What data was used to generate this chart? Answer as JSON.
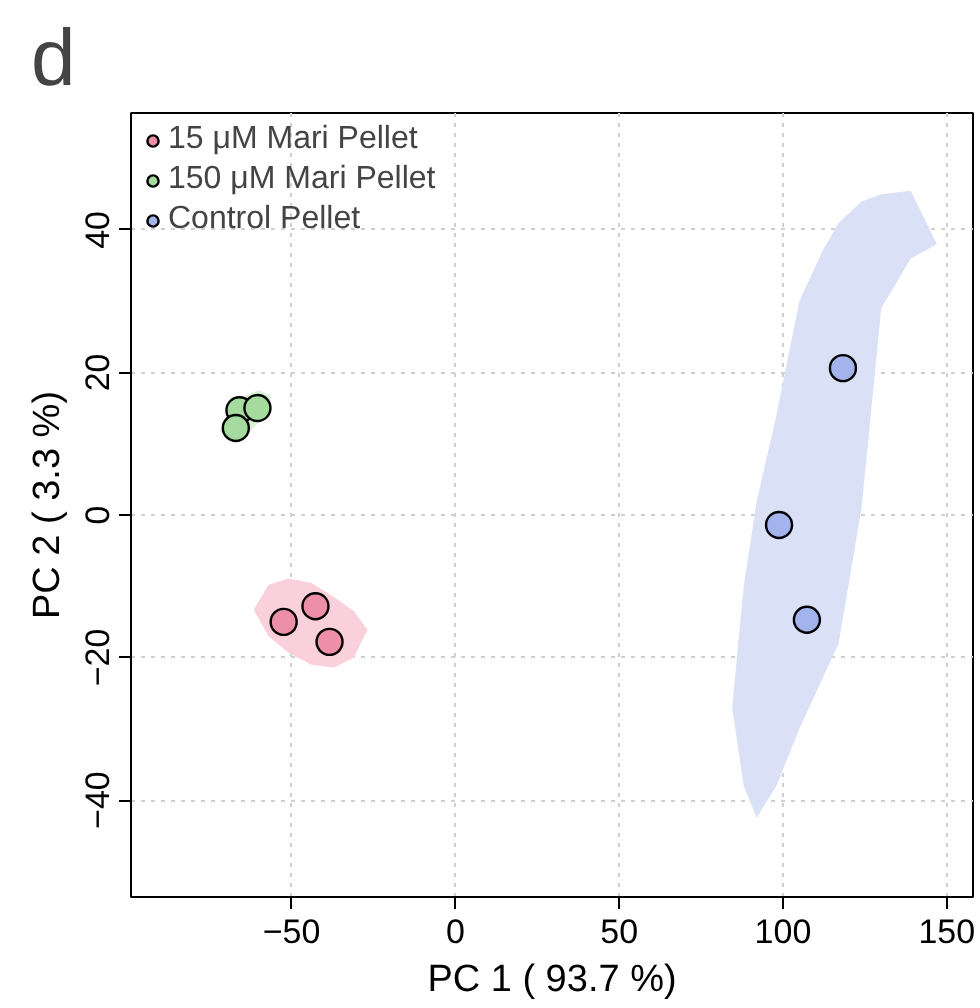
{
  "chart_data": {
    "type": "scatter",
    "xlabel": "PC 1 ( 93.7 %)",
    "ylabel": "PC 2 ( 3.3 %)",
    "annotations": [
      "d"
    ],
    "series": [
      {
        "type": "area",
        "marker": "none",
        "color": "#f9d0dc",
        "x": [
          -61.6,
          -57,
          -51,
          -44,
          -37,
          -31,
          -26.8,
          -31,
          -37,
          -44,
          -51,
          -57
        ],
        "values": [
          -13.3,
          -9.8,
          -8.9,
          -9.5,
          -11.5,
          -13.5,
          -16.1,
          -20.0,
          -21.4,
          -21.0,
          -19.3,
          -17.0
        ]
      },
      {
        "type": "area",
        "marker": "none",
        "color": "#dcf0d8",
        "x": [
          -72,
          -68,
          -64,
          -60,
          -56,
          -60,
          -64,
          -68
        ],
        "values": [
          11.7,
          14.5,
          16.8,
          17.5,
          16.7,
          13.0,
          11.0,
          10.3
        ]
      },
      {
        "type": "area",
        "marker": "none",
        "color": "#dae0f6",
        "x": [
          84.5,
          88,
          92,
          98,
          105,
          112,
          117,
          124,
          130,
          139,
          147,
          139,
          130,
          124,
          117,
          112,
          105,
          98,
          92,
          88
        ],
        "values": [
          -27,
          -10,
          2,
          14,
          30,
          37,
          41,
          44,
          45,
          45.5,
          38,
          36,
          29,
          1,
          -18,
          -23,
          -30,
          -38,
          -42.5,
          -38
        ]
      },
      {
        "name": "15 μM Mari Pellet",
        "color": "#ee8fa8",
        "x": [
          -52.4,
          -42.7,
          -38.4
        ],
        "values": [
          -15.0,
          -12.8,
          -17.8
        ]
      },
      {
        "name": "150 μM Mari Pellet",
        "color": "#a6dba0",
        "x": [
          -65.9,
          -67.0,
          -60.4
        ],
        "values": [
          14.7,
          12.2,
          15.0
        ]
      },
      {
        "name": "Control Pellet",
        "color": "#a3b4ec",
        "x": [
          118.3,
          98.8,
          107.3
        ],
        "values": [
          20.6,
          -1.4,
          -14.7
        ]
      }
    ],
    "xlim": [
      -99,
      158
    ],
    "ylim": [
      -53.6,
      56.4
    ],
    "xticks": [
      -50,
      0,
      50,
      100,
      150
    ],
    "yticks": [
      -40,
      -20,
      0,
      20,
      40
    ],
    "grid": true,
    "legend": "top left",
    "marker": "circle"
  }
}
